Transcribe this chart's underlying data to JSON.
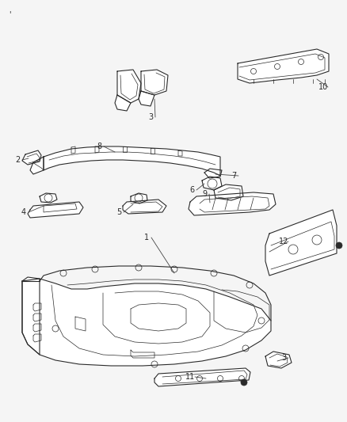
{
  "bg_color": "#f5f5f5",
  "line_color": "#2a2a2a",
  "label_color": "#111111",
  "fig_width": 4.38,
  "fig_height": 5.33,
  "dpi": 100
}
